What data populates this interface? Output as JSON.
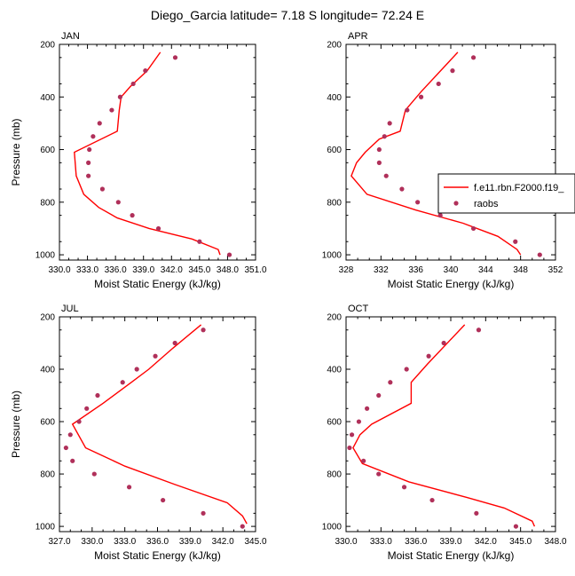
{
  "figure": {
    "title": "Diego_Garcia  latitude= 7.18 S longitude= 72.24 E"
  },
  "legend": {
    "model_label": "f.e11.rbn.F2000.f19_",
    "obs_label": "raobs"
  },
  "colors": {
    "model_line": "#ff0000",
    "obs_marker": "#b0305a",
    "axes": "#000000"
  },
  "chart_data": [
    {
      "type": "line",
      "panel": "JAN",
      "title": "JAN",
      "xlabel": "Moist Static Energy (kJ/kg)",
      "ylabel": "Pressure (mb)",
      "xlim": [
        330.0,
        351.0
      ],
      "ylim": [
        1020,
        200
      ],
      "xticks": [
        330.0,
        333.0,
        336.0,
        339.0,
        342.0,
        345.0,
        348.0,
        351.0
      ],
      "xtick_labels": [
        "330.0",
        "333.0",
        "336.0",
        "339.0",
        "342.0",
        "345.0",
        "348.0",
        "351.0"
      ],
      "yticks": [
        200,
        400,
        600,
        800,
        1000
      ],
      "series": [
        {
          "name": "f.e11.rbn.F2000.f19_",
          "kind": "line",
          "x": [
            340.8,
            339.4,
            337.6,
            336.6,
            336.4,
            336.2,
            331.6,
            331.8,
            332.6,
            334.2,
            336.2,
            339.6,
            344.2,
            347.0,
            347.2
          ],
          "y": [
            230,
            300,
            360,
            400,
            450,
            530,
            610,
            700,
            770,
            820,
            860,
            900,
            940,
            980,
            1000
          ]
        },
        {
          "name": "raobs",
          "kind": "scatter",
          "x": [
            342.4,
            339.2,
            337.9,
            336.5,
            335.6,
            334.3,
            333.6,
            333.2,
            333.1,
            333.1,
            334.6,
            336.3,
            337.8,
            340.6,
            345.0,
            348.2
          ],
          "y": [
            250,
            300,
            350,
            400,
            450,
            500,
            550,
            600,
            650,
            700,
            750,
            800,
            850,
            900,
            950,
            1000
          ]
        }
      ]
    },
    {
      "type": "line",
      "panel": "APR",
      "title": "APR",
      "xlabel": "Moist Static Energy (kJ/kg)",
      "ylabel": "",
      "xlim": [
        328,
        352
      ],
      "ylim": [
        1020,
        200
      ],
      "xticks": [
        328,
        332,
        336,
        340,
        344,
        348,
        352
      ],
      "xtick_labels": [
        "328",
        "332",
        "336",
        "340",
        "344",
        "348",
        "352"
      ],
      "yticks": [
        200,
        400,
        600,
        800,
        1000
      ],
      "series": [
        {
          "name": "f.e11.rbn.F2000.f19_",
          "kind": "line",
          "x": [
            340.8,
            336.6,
            334.8,
            334.2,
            331.8,
            330.2,
            329.2,
            328.6,
            330.4,
            336.0,
            341.4,
            345.4,
            347.6,
            348.0
          ],
          "y": [
            230,
            380,
            450,
            530,
            560,
            610,
            650,
            700,
            770,
            830,
            880,
            930,
            980,
            1000
          ]
        },
        {
          "name": "raobs",
          "kind": "scatter",
          "x": [
            342.6,
            340.2,
            338.6,
            336.6,
            335.0,
            333.0,
            332.4,
            331.8,
            331.8,
            332.6,
            334.4,
            336.2,
            338.8,
            342.6,
            347.4,
            350.2
          ],
          "y": [
            250,
            300,
            350,
            400,
            450,
            500,
            550,
            600,
            650,
            700,
            750,
            800,
            850,
            900,
            950,
            1000
          ]
        }
      ]
    },
    {
      "type": "line",
      "panel": "JUL",
      "title": "JUL",
      "xlabel": "Moist Static Energy (kJ/kg)",
      "ylabel": "Pressure (mb)",
      "xlim": [
        327.0,
        345.0
      ],
      "ylim": [
        1020,
        200
      ],
      "xticks": [
        327.0,
        330.0,
        333.0,
        336.0,
        339.0,
        342.0,
        345.0
      ],
      "xtick_labels": [
        "327.0",
        "330.0",
        "333.0",
        "336.0",
        "339.0",
        "342.0",
        "345.0"
      ],
      "yticks": [
        200,
        400,
        600,
        800,
        1000
      ],
      "series": [
        {
          "name": "f.e11.rbn.F2000.f19_",
          "kind": "line",
          "x": [
            340.0,
            337.4,
            335.2,
            333.6,
            331.0,
            328.2,
            329.4,
            333.0,
            337.6,
            342.4,
            343.8,
            344.2
          ],
          "y": [
            230,
            320,
            400,
            450,
            530,
            610,
            700,
            770,
            840,
            910,
            960,
            990
          ]
        },
        {
          "name": "raobs",
          "kind": "scatter",
          "x": [
            340.2,
            337.6,
            335.8,
            334.1,
            332.8,
            330.5,
            329.5,
            328.8,
            328.0,
            327.6,
            328.2,
            330.2,
            333.4,
            336.5,
            340.2,
            343.8
          ],
          "y": [
            250,
            300,
            350,
            400,
            450,
            500,
            550,
            600,
            650,
            700,
            750,
            800,
            850,
            900,
            950,
            1000
          ]
        }
      ]
    },
    {
      "type": "line",
      "panel": "OCT",
      "title": "OCT",
      "xlabel": "Moist Static Energy (kJ/kg)",
      "ylabel": "",
      "xlim": [
        330.0,
        348.0
      ],
      "ylim": [
        1020,
        200
      ],
      "xticks": [
        330.0,
        333.0,
        336.0,
        339.0,
        342.0,
        345.0,
        348.0
      ],
      "xtick_labels": [
        "330.0",
        "333.0",
        "336.0",
        "339.0",
        "342.0",
        "345.0",
        "348.0"
      ],
      "yticks": [
        200,
        400,
        600,
        800,
        1000
      ],
      "series": [
        {
          "name": "f.e11.rbn.F2000.f19_",
          "kind": "line",
          "x": [
            340.2,
            337.0,
            335.6,
            335.6,
            332.2,
            331.2,
            330.6,
            331.4,
            335.4,
            340.4,
            343.6,
            346.0,
            346.2
          ],
          "y": [
            230,
            380,
            450,
            530,
            610,
            650,
            700,
            760,
            830,
            890,
            930,
            980,
            1000
          ]
        },
        {
          "name": "raobs",
          "kind": "scatter",
          "x": [
            341.4,
            338.4,
            337.1,
            335.2,
            333.8,
            332.8,
            331.8,
            331.1,
            330.5,
            330.3,
            331.5,
            332.8,
            335.0,
            337.4,
            341.2,
            344.6
          ],
          "y": [
            250,
            300,
            350,
            400,
            450,
            500,
            550,
            600,
            650,
            700,
            750,
            800,
            850,
            900,
            950,
            1000
          ]
        }
      ]
    }
  ]
}
